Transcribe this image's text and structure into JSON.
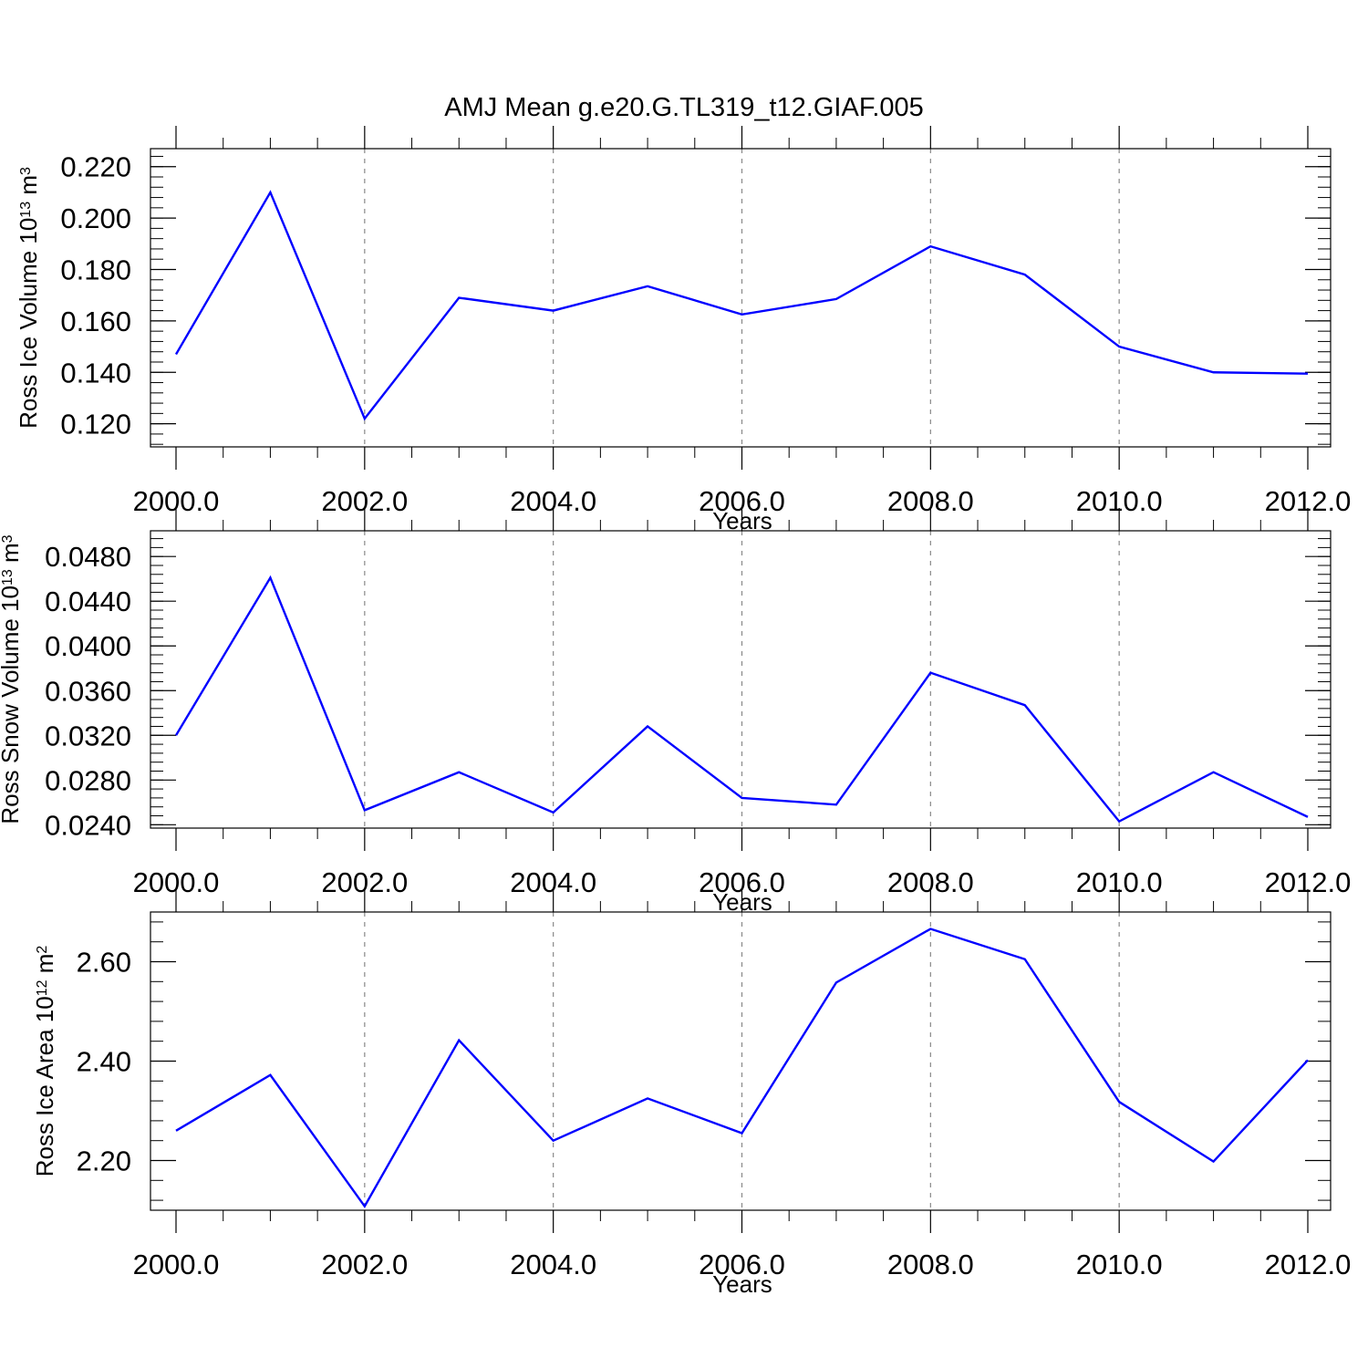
{
  "title": "AMJ Mean g.e20.G.TL319_t12.GIAF.005",
  "colors": {
    "line": "#0000ff",
    "grid": "#888888",
    "axis": "#000000"
  },
  "chart_data": [
    {
      "type": "line",
      "xlabel": "Years",
      "ylabel_parts": [
        "Ross Ice Volume 10",
        "13",
        " m",
        "3"
      ],
      "xlim": [
        2000,
        2012
      ],
      "ylim": [
        0.111,
        0.227
      ],
      "xticks": [
        2000,
        2002,
        2004,
        2006,
        2008,
        2010,
        2012
      ],
      "xtick_labels": [
        "2000.0",
        "2002.0",
        "2004.0",
        "2006.0",
        "2008.0",
        "2010.0",
        "2012.0"
      ],
      "yticks": [
        0.12,
        0.14,
        0.16,
        0.18,
        0.2,
        0.22
      ],
      "ytick_labels": [
        "0.120",
        "0.140",
        "0.160",
        "0.180",
        "0.200",
        "0.220"
      ],
      "grid": "vertical dashed at major x ticks",
      "series": [
        {
          "x": [
            2000,
            2001,
            2002,
            2003,
            2004,
            2005,
            2006,
            2007,
            2008,
            2009,
            2010,
            2011,
            2012
          ],
          "values": [
            0.147,
            0.21,
            0.122,
            0.169,
            0.164,
            0.1735,
            0.1625,
            0.1685,
            0.189,
            0.178,
            0.15,
            0.14,
            0.1395
          ]
        }
      ]
    },
    {
      "type": "line",
      "xlabel": "Years",
      "ylabel_parts": [
        "Ross Snow Volume 10",
        "13",
        " m",
        "3"
      ],
      "xlim": [
        2000,
        2012
      ],
      "ylim": [
        0.0237,
        0.0503
      ],
      "xticks": [
        2000,
        2002,
        2004,
        2006,
        2008,
        2010,
        2012
      ],
      "xtick_labels": [
        "2000.0",
        "2002.0",
        "2004.0",
        "2006.0",
        "2008.0",
        "2010.0",
        "2012.0"
      ],
      "yticks": [
        0.024,
        0.028,
        0.032,
        0.036,
        0.04,
        0.044,
        0.048
      ],
      "ytick_labels": [
        "0.0240",
        "0.0280",
        "0.0320",
        "0.0360",
        "0.0400",
        "0.0440",
        "0.0480"
      ],
      "grid": "vertical dashed at major x ticks",
      "series": [
        {
          "x": [
            2000,
            2001,
            2002,
            2003,
            2004,
            2005,
            2006,
            2007,
            2008,
            2009,
            2010,
            2011,
            2012
          ],
          "values": [
            0.032,
            0.0461,
            0.0253,
            0.0287,
            0.0251,
            0.0328,
            0.0264,
            0.0258,
            0.0376,
            0.0347,
            0.0243,
            0.0287,
            0.0247
          ]
        }
      ]
    },
    {
      "type": "line",
      "xlabel": "Years",
      "ylabel_parts": [
        "Ross Ice Area 10",
        "12",
        " m",
        "2"
      ],
      "xlim": [
        2000,
        2012
      ],
      "ylim": [
        2.1,
        2.7
      ],
      "xticks": [
        2000,
        2002,
        2004,
        2006,
        2008,
        2010,
        2012
      ],
      "xtick_labels": [
        "2000.0",
        "2002.0",
        "2004.0",
        "2006.0",
        "2008.0",
        "2010.0",
        "2012.0"
      ],
      "yticks": [
        2.2,
        2.4,
        2.6
      ],
      "ytick_labels": [
        "2.20",
        "2.40",
        "2.60"
      ],
      "grid": "vertical dashed at major x ticks",
      "series": [
        {
          "x": [
            2000,
            2001,
            2002,
            2003,
            2004,
            2005,
            2006,
            2007,
            2008,
            2009,
            2010,
            2011,
            2012
          ],
          "values": [
            2.26,
            2.372,
            2.108,
            2.442,
            2.24,
            2.325,
            2.255,
            2.558,
            2.666,
            2.605,
            2.318,
            2.198,
            2.402
          ]
        }
      ]
    }
  ]
}
